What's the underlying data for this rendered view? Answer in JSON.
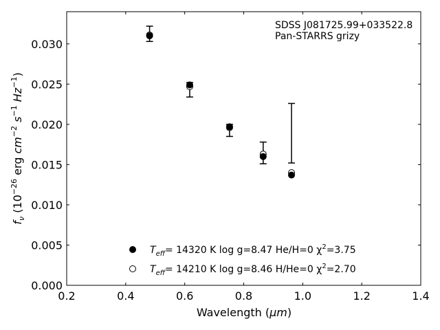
{
  "chart_data": {
    "type": "scatter",
    "xlabel_prefix": "Wavelength (",
    "xlabel_unit": "μm",
    "xlabel_suffix": ")",
    "ylabel": "f_ν (10^−26 erg cm^−2 s^−1 Hz^−1)",
    "xlim": [
      0.2,
      1.4
    ],
    "ylim": [
      0.0,
      0.034
    ],
    "xticks": [
      0.2,
      0.4,
      0.6,
      0.8,
      1.0,
      1.2,
      1.4
    ],
    "xtick_labels": [
      "0.2",
      "0.4",
      "0.6",
      "0.8",
      "1.0",
      "1.2",
      "1.4"
    ],
    "yticks": [
      0.0,
      0.005,
      0.01,
      0.015,
      0.02,
      0.025,
      0.03
    ],
    "ytick_labels": [
      "0.000",
      "0.005",
      "0.010",
      "0.015",
      "0.020",
      "0.025",
      "0.030"
    ],
    "annotation_lines": [
      "SDSS J081725.99+033522.8",
      "Pan-STARRS grizy"
    ],
    "observed": {
      "x": [
        0.481,
        0.617,
        0.752,
        0.866,
        0.962
      ],
      "y": [
        0.0312,
        0.0243,
        0.0193,
        0.0163,
        0.0189
      ],
      "yerr_low": [
        0.0009,
        0.0009,
        0.0008,
        0.0012,
        0.0037
      ],
      "yerr_high": [
        0.001,
        0.0009,
        0.0007,
        0.0015,
        0.0037
      ]
    },
    "series": [
      {
        "marker": "filled",
        "label_teff": "= 14320 K  log g=8.47  He/H=0  χ",
        "label_chi": "=3.75",
        "x": [
          0.481,
          0.617,
          0.752,
          0.866,
          0.962
        ],
        "y": [
          0.031,
          0.0249,
          0.0197,
          0.016,
          0.0137
        ]
      },
      {
        "marker": "open",
        "label_teff": "= 14210 K  log g=8.46  H/He=0  χ",
        "label_chi": "=2.70",
        "x": [
          0.481,
          0.617,
          0.752,
          0.866,
          0.962
        ],
        "y": [
          0.0311,
          0.0247,
          0.0196,
          0.0163,
          0.014
        ]
      }
    ],
    "grid": false,
    "legend_position": "bottom-center"
  }
}
